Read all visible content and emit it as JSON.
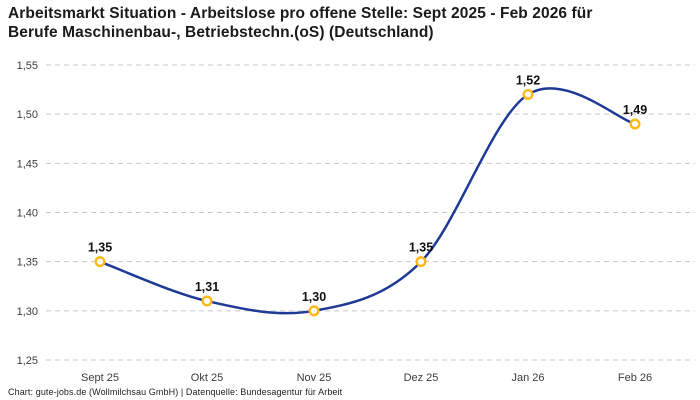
{
  "header": {
    "title_line1": "Arbeitsmarkt Situation - Arbeitslose pro offene Stelle: Sept 2025 - Feb 2026 für",
    "title_line2": "Berufe Maschinenbau-, Betriebstechn.(oS) (Deutschland)"
  },
  "footer": {
    "credit": "Chart: gute-jobs.de (Wollmilchsau GmbH) | Datenquelle: Bundesagentur für Arbeit"
  },
  "chart_data": {
    "type": "line",
    "title": "Arbeitsmarkt Situation - Arbeitslose pro offene Stelle: Sept 2025 - Feb 2026 für Berufe Maschinenbau-, Betriebstechn.(oS) (Deutschland)",
    "categories": [
      "Sept 25",
      "Okt 25",
      "Nov 25",
      "Dez 25",
      "Jan 26",
      "Feb 26"
    ],
    "series": [
      {
        "name": "Arbeitslose pro offene Stelle",
        "values": [
          1.35,
          1.31,
          1.3,
          1.35,
          1.52,
          1.49
        ],
        "point_labels": [
          "1,35",
          "1,31",
          "1,30",
          "1,35",
          "1,52",
          "1,49"
        ]
      }
    ],
    "xlabel": "",
    "ylabel": "",
    "ylim": [
      1.25,
      1.55
    ],
    "y_ticks": [
      1.55,
      1.5,
      1.45,
      1.4,
      1.35,
      1.3,
      1.25
    ],
    "y_tick_labels": [
      "1,55",
      "1,50",
      "1,45",
      "1,40",
      "1,35",
      "1,30",
      "1,25"
    ],
    "grid": "horizontal-dashed",
    "legend_position": "none",
    "line_style": "smooth-spline",
    "colors": {
      "line": "#1e3a96",
      "marker_stroke": "#fdb813",
      "marker_fill": "#ffffff",
      "gridline": "#c8c8c8",
      "tick_text": "#3c3c3c",
      "point_label_text": "#111111"
    }
  }
}
